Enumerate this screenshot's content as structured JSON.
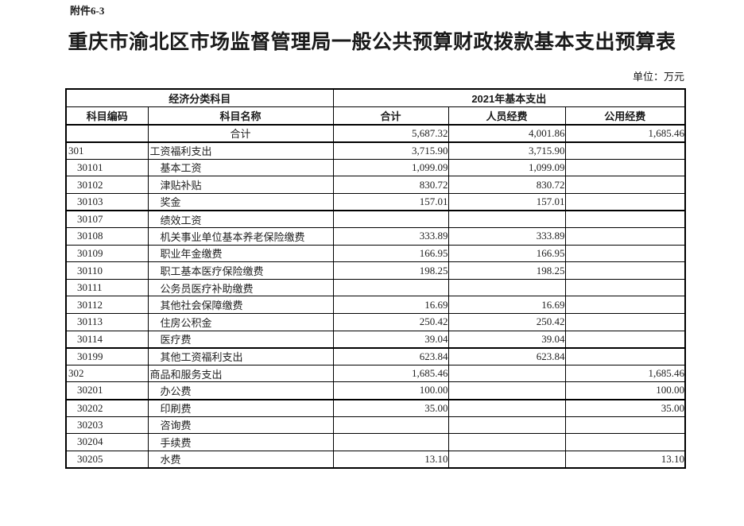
{
  "page": {
    "attachment_label": "附件6-3",
    "title": "重庆市渝北区市场监督管理局一般公共预算财政拨款基本支出预算表",
    "unit_label": "单位：万元"
  },
  "table": {
    "header": {
      "group_left": "经济分类科目",
      "group_right": "2021年基本支出",
      "columns": [
        "科目编码",
        "科目名称",
        "合计",
        "人员经费",
        "公用经费"
      ]
    },
    "rows": [
      {
        "code": "",
        "name": "合计",
        "total": "5,687.32",
        "personnel": "4,001.86",
        "public": "1,685.46",
        "level": "total",
        "rule_below": true
      },
      {
        "code": "301",
        "name": "工资福利支出",
        "total": "3,715.90",
        "personnel": "3,715.90",
        "public": "",
        "level": "category",
        "rule_below": false
      },
      {
        "code": "30101",
        "name": "基本工资",
        "total": "1,099.09",
        "personnel": "1,099.09",
        "public": "",
        "level": "item",
        "rule_below": false
      },
      {
        "code": "30102",
        "name": "津贴补贴",
        "total": "830.72",
        "personnel": "830.72",
        "public": "",
        "level": "item",
        "rule_below": false
      },
      {
        "code": "30103",
        "name": "奖金",
        "total": "157.01",
        "personnel": "157.01",
        "public": "",
        "level": "item",
        "rule_below": true
      },
      {
        "code": "30107",
        "name": "绩效工资",
        "total": "",
        "personnel": "",
        "public": "",
        "level": "item",
        "rule_below": false
      },
      {
        "code": "30108",
        "name": "机关事业单位基本养老保险缴费",
        "total": "333.89",
        "personnel": "333.89",
        "public": "",
        "level": "item",
        "rule_below": false
      },
      {
        "code": "30109",
        "name": "职业年金缴费",
        "total": "166.95",
        "personnel": "166.95",
        "public": "",
        "level": "item",
        "rule_below": false
      },
      {
        "code": "30110",
        "name": "职工基本医疗保险缴费",
        "total": "198.25",
        "personnel": "198.25",
        "public": "",
        "level": "item",
        "rule_below": false
      },
      {
        "code": "30111",
        "name": "公务员医疗补助缴费",
        "total": "",
        "personnel": "",
        "public": "",
        "level": "item",
        "rule_below": false
      },
      {
        "code": "30112",
        "name": "其他社会保障缴费",
        "total": "16.69",
        "personnel": "16.69",
        "public": "",
        "level": "item",
        "rule_below": false
      },
      {
        "code": "30113",
        "name": "住房公积金",
        "total": "250.42",
        "personnel": "250.42",
        "public": "",
        "level": "item",
        "rule_below": false
      },
      {
        "code": "30114",
        "name": "医疗费",
        "total": "39.04",
        "personnel": "39.04",
        "public": "",
        "level": "item",
        "rule_below": true
      },
      {
        "code": "30199",
        "name": "其他工资福利支出",
        "total": "623.84",
        "personnel": "623.84",
        "public": "",
        "level": "item",
        "rule_below": false
      },
      {
        "code": "302",
        "name": "商品和服务支出",
        "total": "1,685.46",
        "personnel": "",
        "public": "1,685.46",
        "level": "category",
        "rule_below": false
      },
      {
        "code": "30201",
        "name": "办公费",
        "total": "100.00",
        "personnel": "",
        "public": "100.00",
        "level": "item",
        "rule_below": true
      },
      {
        "code": "30202",
        "name": "印刷费",
        "total": "35.00",
        "personnel": "",
        "public": "35.00",
        "level": "item",
        "rule_below": false
      },
      {
        "code": "30203",
        "name": "咨询费",
        "total": "",
        "personnel": "",
        "public": "",
        "level": "item",
        "rule_below": false
      },
      {
        "code": "30204",
        "name": "手续费",
        "total": "",
        "personnel": "",
        "public": "",
        "level": "item",
        "rule_below": false
      },
      {
        "code": "30205",
        "name": "水费",
        "total": "13.10",
        "personnel": "",
        "public": "13.10",
        "level": "item",
        "rule_below": false
      }
    ]
  }
}
